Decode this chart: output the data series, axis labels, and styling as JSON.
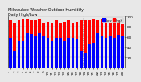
{
  "title": "Milwaukee Weather Outdoor Humidity",
  "subtitle": "Daily High/Low",
  "background_color": "#e8e8e8",
  "plot_bg_color": "#e8e8e8",
  "high_color": "#ff0000",
  "low_color": "#0000ff",
  "ylim": [
    0,
    100
  ],
  "yticks": [
    20,
    40,
    60,
    80,
    100
  ],
  "legend_high": "High",
  "legend_low": "Low",
  "days": [
    "1",
    "2",
    "3",
    "4",
    "5",
    "6",
    "7",
    "8",
    "9",
    "10",
    "11",
    "12",
    "13",
    "14",
    "15",
    "16",
    "17",
    "18",
    "19",
    "20",
    "21",
    "22",
    "23",
    "24",
    "25",
    "26",
    "27",
    "28"
  ],
  "high_values": [
    93,
    88,
    92,
    95,
    95,
    93,
    93,
    95,
    88,
    90,
    88,
    92,
    88,
    90,
    92,
    88,
    90,
    93,
    93,
    93,
    95,
    93,
    95,
    90,
    88,
    92,
    93,
    85
  ],
  "low_values": [
    58,
    33,
    52,
    52,
    68,
    66,
    62,
    68,
    62,
    58,
    52,
    58,
    58,
    52,
    58,
    58,
    55,
    33,
    28,
    45,
    48,
    68,
    62,
    58,
    62,
    58,
    65,
    62
  ],
  "dashed_line_x": 17.5,
  "title_fontsize": 3.5,
  "tick_fontsize": 3.0,
  "legend_fontsize": 2.8
}
